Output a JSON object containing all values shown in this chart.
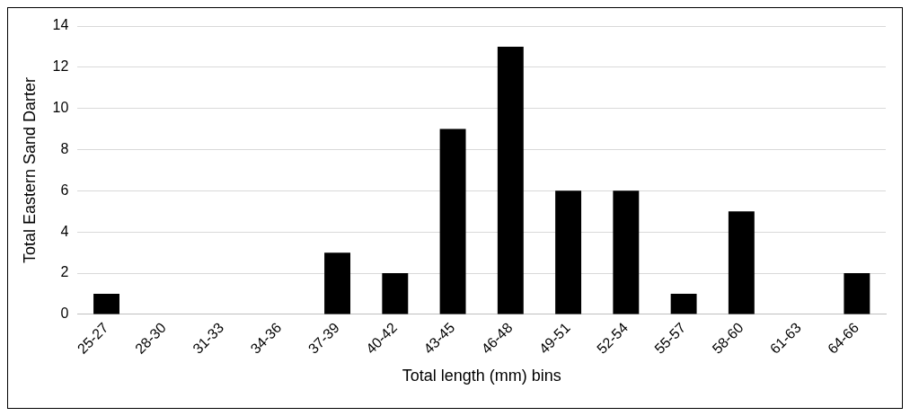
{
  "chart_data": {
    "type": "bar",
    "xlabel": "Total length (mm) bins",
    "ylabel": "Total Eastern Sand Darter",
    "categories": [
      "25-27",
      "28-30",
      "31-33",
      "34-36",
      "37-39",
      "40-42",
      "43-45",
      "46-48",
      "49-51",
      "52-54",
      "55-57",
      "58-60",
      "61-63",
      "64-66"
    ],
    "values": [
      1,
      0,
      0,
      0,
      3,
      2,
      9,
      13,
      6,
      6,
      1,
      5,
      0,
      2
    ],
    "color": "#000000",
    "ylim": [
      0,
      14
    ],
    "yticks": [
      0,
      2,
      4,
      6,
      8,
      10,
      12,
      14
    ],
    "grid": "y",
    "legend": false
  }
}
